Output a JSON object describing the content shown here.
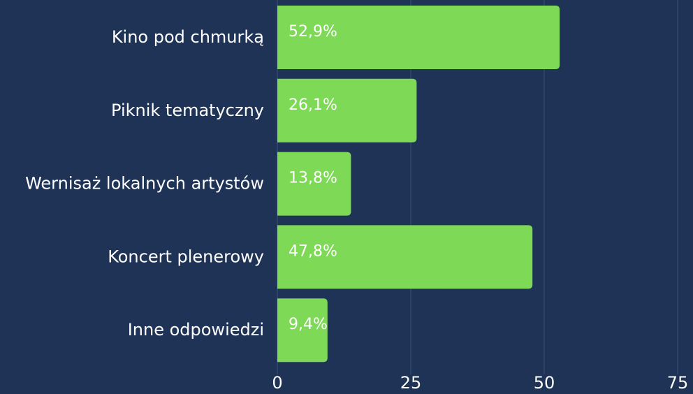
{
  "chart_data": {
    "type": "bar",
    "orientation": "horizontal",
    "categories": [
      "Kino pod chmurką",
      "Piknik tematyczny",
      "Wernisaż lokalnych artystów",
      "Koncert plenerowy",
      "Inne odpowiedzi"
    ],
    "values": [
      52.9,
      26.1,
      13.8,
      47.8,
      9.4
    ],
    "value_labels": [
      "52,9%",
      "26,1%",
      "13,8%",
      "47,8%",
      "9,4%"
    ],
    "color": "#7ed957",
    "xlim": [
      0,
      75
    ],
    "xticks": [
      0,
      25,
      50,
      75
    ],
    "grid": true
  }
}
